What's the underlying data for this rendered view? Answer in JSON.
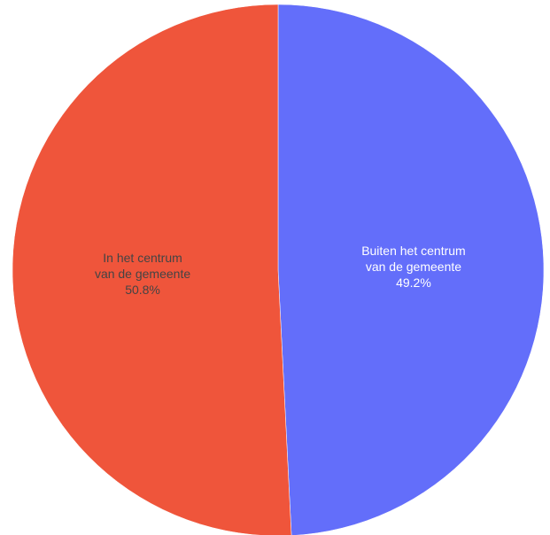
{
  "chart_data": {
    "type": "pie",
    "title": "",
    "slices": [
      {
        "label_lines": [
          "Buiten het centrum",
          "van de gemeente"
        ],
        "percent_label": "49.2%",
        "value": 49.2,
        "color": "#636efa",
        "text_color": "#ffffff"
      },
      {
        "label_lines": [
          "In het centrum",
          "van de gemeente"
        ],
        "percent_label": "50.8%",
        "value": 50.8,
        "color": "#ef553b",
        "text_color": "#444444"
      }
    ],
    "start_angle": "12 o'clock",
    "direction": "clockwise",
    "legend": "none"
  }
}
